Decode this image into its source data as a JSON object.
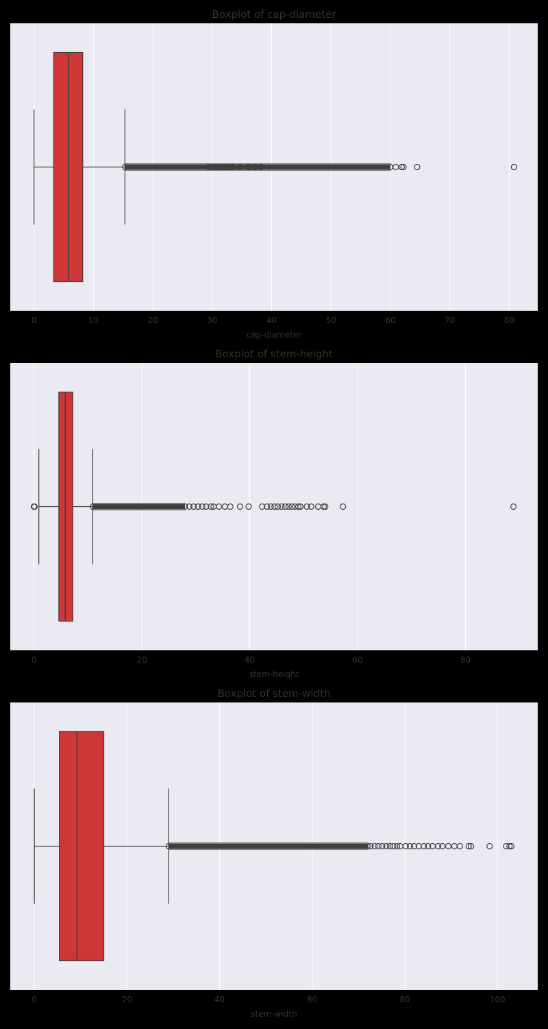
{
  "figure": {
    "background": "#000000",
    "panel_color": "#eaeaf2",
    "grid_color": "#ffffff",
    "box_color": "#d03538",
    "line_color": "#3f3f3f",
    "text_color": "#333333"
  },
  "chart_data": [
    {
      "type": "boxplot",
      "title": "Boxplot of cap-diameter",
      "xlabel": "cap-diameter",
      "ylabel": "",
      "xlim": [
        -4.0,
        84.8
      ],
      "xticks": [
        0,
        10,
        20,
        30,
        40,
        50,
        60,
        70,
        80
      ],
      "grid": true,
      "stats": {
        "whisker_low": 0.0,
        "q1": 3.3,
        "median": 5.8,
        "q3": 8.2,
        "whisker_high": 15.3
      },
      "outlier_band": [
        15.3,
        60.0
      ],
      "outliers": [
        29.4,
        30.2,
        30.8,
        31.5,
        32.2,
        32.9,
        33.5,
        34.7,
        36.0,
        36.4,
        37.2,
        38.2,
        60.9,
        61.9,
        62.2,
        64.5,
        80.8
      ]
    },
    {
      "type": "boxplot",
      "title": "Boxplot of stem-height",
      "xlabel": "stem-height",
      "ylabel": "",
      "xlim": [
        -4.4,
        93.4
      ],
      "xticks": [
        0,
        20,
        40,
        60,
        80
      ],
      "grid": true,
      "stats": {
        "whisker_low": 0.9,
        "q1": 4.6,
        "median": 5.8,
        "q3": 7.2,
        "whisker_high": 10.9
      },
      "outlier_band": [
        10.9,
        28.0
      ],
      "outliers": [
        0.0,
        0.0,
        0.1,
        28.8,
        29.6,
        30.4,
        31.2,
        31.9,
        32.8,
        33.3,
        34.3,
        35.4,
        36.4,
        38.2,
        39.8,
        42.3,
        43.2,
        43.9,
        44.6,
        45.2,
        45.9,
        46.6,
        47.2,
        47.8,
        48.4,
        49.0,
        49.4,
        50.6,
        51.4,
        52.7,
        53.7,
        54.0,
        57.3,
        88.9
      ]
    },
    {
      "type": "boxplot",
      "title": "Boxplot of stem-width",
      "xlabel": "stem-width",
      "ylabel": "",
      "xlim": [
        -5.2,
        108.7
      ],
      "xticks": [
        0,
        20,
        40,
        60,
        80,
        100
      ],
      "grid": true,
      "stats": {
        "whisker_low": 0.0,
        "q1": 5.4,
        "median": 9.2,
        "q3": 15.0,
        "whisker_high": 29.0
      },
      "outlier_band": [
        29.0,
        72.0
      ],
      "outliers": [
        72.6,
        73.5,
        74.3,
        75.1,
        76.0,
        76.8,
        77.5,
        78.3,
        79.0,
        80.2,
        81.1,
        82.0,
        83.0,
        84.1,
        85.0,
        86.0,
        87.2,
        88.1,
        89.4,
        90.7,
        91.9,
        93.8,
        94.3,
        98.3,
        101.9,
        102.6,
        103.0
      ]
    }
  ]
}
